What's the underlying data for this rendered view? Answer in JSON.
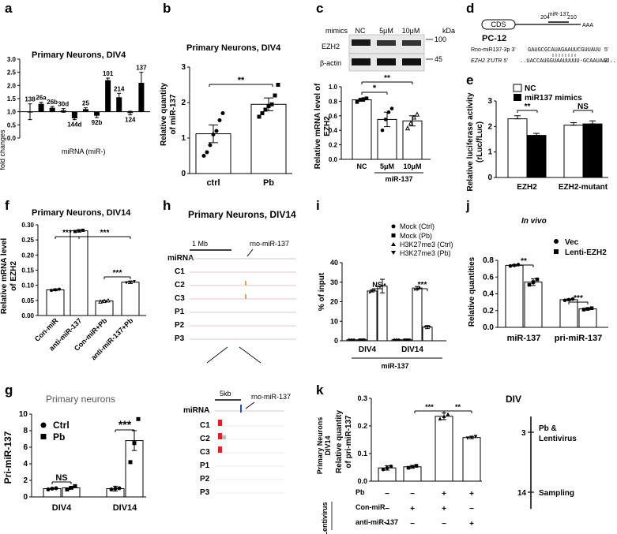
{
  "panel_labels": [
    "a",
    "b",
    "c",
    "d",
    "e",
    "f",
    "g",
    "h",
    "i",
    "j",
    "k"
  ],
  "panel_a": {
    "title": "Primary Neurons, DIV4",
    "ylabel": "fold changes",
    "xlabel": "miRNA (miR-)",
    "yticks": [
      "0.0",
      "0.5",
      "1.0",
      "1.5",
      "2.0",
      "2.5",
      "3.0"
    ]
  },
  "panel_b": {
    "title": "Primary Neurons, DIV4",
    "ylabel1": "Relative quantity",
    "ylabel2": "of miR-137",
    "yticks": [
      "0",
      "1",
      "2",
      "3"
    ],
    "sig": "**"
  },
  "panel_c": {
    "mimics_label": "mimics",
    "lanes": [
      "NC",
      "5μM",
      "10μM"
    ],
    "kda_label": "kDa",
    "blot1_label": "EZH2",
    "blot1_kda": "100",
    "blot2_label": "β-actin",
    "blot2_kda": "45",
    "ylabel1": "Relative mRNA level of",
    "ylabel2": "EZH2",
    "yticks": [
      "0.0",
      "0.2",
      "0.4",
      "0.6",
      "0.8",
      "1.0"
    ],
    "group_label": "miR-137",
    "sig1": "*",
    "sig2": "**"
  },
  "panel_d": {
    "cds": "CDS",
    "pos1": "204",
    "mir": "miR-137",
    "pos2": "210",
    "tail": "AAA",
    "cell": "PC-12",
    "seq1_label": "Rno-miR137-3p  3'",
    "seq1": "GAUGCGCAUAGAAUUCGUUAUU",
    "seq1_end": "5'",
    "seq2_label": "EZH2 3'UTR  5'",
    "seq2": "..UACCAUGGUAAUUUUU-GCAAUAAU..",
    "seq2_end": "3'"
  },
  "panel_e": {
    "legend": [
      "NC",
      "miR137 mimics"
    ],
    "ylabel1": "Relative luciferase activity",
    "ylabel2": "(rLuc/fLuc)",
    "yticks": [
      "0",
      "1",
      "2",
      "3"
    ],
    "sig1": "**",
    "sig2": "NS"
  },
  "panel_f": {
    "title": "Primary Neurons, DIV14",
    "ylabel1": "Relative mRNA level",
    "ylabel2": "of EZH2",
    "yticks": [
      "0.00",
      "0.05",
      "0.10",
      "0.15",
      "0.20",
      "0.25",
      "0.30"
    ],
    "sig1": "***",
    "sig2": "***",
    "sig3": "***"
  },
  "panel_g": {
    "title": "Primary neurons",
    "ylabel": "Pri-miR-137",
    "yticks": [
      "0",
      "2",
      "4",
      "6",
      "8",
      "10"
    ],
    "legend": [
      "Ctrl",
      "Pb"
    ],
    "sig1": "NS",
    "sig2": "***"
  },
  "panel_h": {
    "title": "Primary Neurons, DIV14",
    "scale1": "1 Mb",
    "scale2": "5kb",
    "gene": "rno-miR-137",
    "tracks": [
      "miRNA",
      "C1",
      "C2",
      "C3",
      "P1",
      "P2",
      "P3"
    ]
  },
  "panel_i": {
    "ylabel": "% of input",
    "yticks": [
      "0",
      "10",
      "20",
      "30",
      "40"
    ],
    "legend": [
      "Mock (Ctrl)",
      "Mock (Pb)",
      "H3K27me3 (Ctrl)",
      "H3K27me3 (Pb)"
    ],
    "group_label": "miR-137",
    "sig1": "NS",
    "sig2": "***"
  },
  "panel_j": {
    "title": "In vivo",
    "ylabel": "Relative quantities",
    "yticks": [
      "0.0",
      "0.2",
      "0.4",
      "0.6",
      "0.8"
    ],
    "legend": [
      "Vec",
      "Lenti-EZH2"
    ],
    "sig1": "**",
    "sig2": "***"
  },
  "panel_k": {
    "ylabel_side1": "Primary Neurons",
    "ylabel_side2": "DIV14",
    "ylabel1": "Relative quantity",
    "ylabel2": "of pri-miR-137",
    "yticks": [
      "0.0",
      "0.1",
      "0.2",
      "0.3"
    ],
    "sig1": "***",
    "sig2": "**",
    "row_labels": [
      "Pb",
      "Con-miR",
      "anti-miR-137"
    ],
    "lentivirus": "Lentivirus",
    "pb_row": [
      "−",
      "−",
      "+",
      "+"
    ],
    "con_row": [
      "−",
      "+",
      "+",
      "−"
    ],
    "anti_row": [
      "−",
      "−",
      "−",
      "+"
    ],
    "div_label": "DIV",
    "tl1_num": "3",
    "tl1_text1": "Pb &",
    "tl1_text2": "Lentivirus",
    "tl2_num": "14",
    "tl2_text": "Sampling"
  },
  "chart_data": [
    {
      "panel": "a",
      "type": "bar",
      "title": "Primary Neurons, DIV4",
      "ylabel": "fold changes",
      "xlabel": "miRNA (miR-)",
      "ylim": [
        0,
        3
      ],
      "categories": [
        "138",
        "26a",
        "26b",
        "30d",
        "144d",
        "25",
        "92b",
        "101",
        "214",
        "124",
        "137"
      ],
      "values": [
        1.0,
        1.3,
        1.15,
        1.05,
        0.75,
        1.1,
        0.85,
        2.2,
        1.55,
        0.95,
        2.1
      ],
      "errors": [
        0.3,
        0.06,
        0.05,
        0.07,
        0.05,
        0.05,
        0.07,
        0.08,
        0.15,
        0.07,
        0.4
      ]
    },
    {
      "panel": "b",
      "type": "bar",
      "title": "Primary Neurons, DIV4",
      "ylabel": "Relative quantity of miR-137",
      "ylim": [
        0,
        3
      ],
      "categories": [
        "ctrl",
        "Pb"
      ],
      "values": [
        1.12,
        1.95
      ],
      "errors": [
        0.25,
        0.18
      ],
      "points": [
        [
          0.5,
          0.6,
          0.8,
          1.1,
          1.2,
          1.5,
          1.7
        ],
        [
          1.6,
          1.7,
          1.8,
          1.9,
          1.95,
          2.2,
          2.5
        ]
      ]
    },
    {
      "panel": "c",
      "type": "bar",
      "ylabel": "Relative mRNA level of EZH2",
      "ylim": [
        0,
        1.0
      ],
      "categories": [
        "NC",
        "5μM",
        "10μM"
      ],
      "values": [
        0.82,
        0.55,
        0.53
      ],
      "errors": [
        0.02,
        0.1,
        0.07
      ],
      "points": [
        [
          0.79,
          0.82,
          0.83,
          0.84
        ],
        [
          0.4,
          0.55,
          0.65,
          0.7
        ],
        [
          0.43,
          0.5,
          0.58,
          0.62
        ]
      ]
    },
    {
      "panel": "e",
      "type": "bar",
      "ylabel": "Relative luciferase activity (rLuc/fLuc)",
      "ylim": [
        0,
        3
      ],
      "categories": [
        "EZH2",
        "EZH2-mutant"
      ],
      "series": [
        {
          "name": "NC",
          "values": [
            2.3,
            2.05
          ],
          "errors": [
            0.12,
            0.1
          ]
        },
        {
          "name": "miR137 mimics",
          "values": [
            1.65,
            2.1
          ],
          "errors": [
            0.08,
            0.12
          ]
        }
      ]
    },
    {
      "panel": "f",
      "type": "bar",
      "title": "Primary Neurons, DIV14",
      "ylabel": "Relative mRNA level of EZH2",
      "ylim": [
        0,
        0.3
      ],
      "categories": [
        "Con-miR",
        "anti-miR-137",
        "Con-miR+Pb",
        "anti-miR-137+Pb"
      ],
      "values": [
        0.085,
        0.28,
        0.048,
        0.11
      ],
      "errors": [
        0.003,
        0.004,
        0.002,
        0.004
      ]
    },
    {
      "panel": "g",
      "type": "bar",
      "title": "Primary neurons",
      "ylabel": "Pri-miR-137",
      "ylim": [
        0,
        10
      ],
      "categories": [
        "DIV4",
        "DIV14"
      ],
      "series": [
        {
          "name": "Ctrl",
          "values": [
            1.0,
            1.0
          ],
          "errors": [
            0.05,
            0.3
          ]
        },
        {
          "name": "Pb",
          "values": [
            1.1,
            6.8
          ],
          "errors": [
            0.1,
            1.2
          ]
        }
      ]
    },
    {
      "panel": "i",
      "type": "bar",
      "ylabel": "% of input",
      "ylim": [
        0,
        40
      ],
      "categories": [
        "DIV4",
        "DIV14"
      ],
      "series": [
        {
          "name": "Mock (Ctrl)",
          "values": [
            0.5,
            0.5
          ]
        },
        {
          "name": "Mock (Pb)",
          "values": [
            0.5,
            0.5
          ]
        },
        {
          "name": "H3K27me3 (Ctrl)",
          "values": [
            25.5,
            27
          ],
          "errors": [
            0.5,
            0.8
          ]
        },
        {
          "name": "H3K27me3 (Pb)",
          "values": [
            28,
            7
          ],
          "errors": [
            3.5,
            0.8
          ]
        }
      ]
    },
    {
      "panel": "j",
      "type": "bar",
      "title": "In vivo",
      "ylabel": "Relative quantities",
      "ylim": [
        0,
        0.8
      ],
      "categories": [
        "miR-137",
        "pri-miR-137"
      ],
      "series": [
        {
          "name": "Vec",
          "values": [
            0.74,
            0.33
          ],
          "errors": [
            0.01,
            0.01
          ]
        },
        {
          "name": "Lenti-EZH2",
          "values": [
            0.54,
            0.22
          ],
          "errors": [
            0.04,
            0.01
          ]
        }
      ]
    },
    {
      "panel": "k",
      "type": "bar",
      "ylabel": "Relative quantity of pri-miR-137",
      "ylim": [
        0,
        0.3
      ],
      "categories": [
        "1",
        "2",
        "3",
        "4"
      ],
      "values": [
        0.048,
        0.052,
        0.235,
        0.158
      ],
      "errors": [
        0.008,
        0.005,
        0.012,
        0.004
      ]
    }
  ]
}
